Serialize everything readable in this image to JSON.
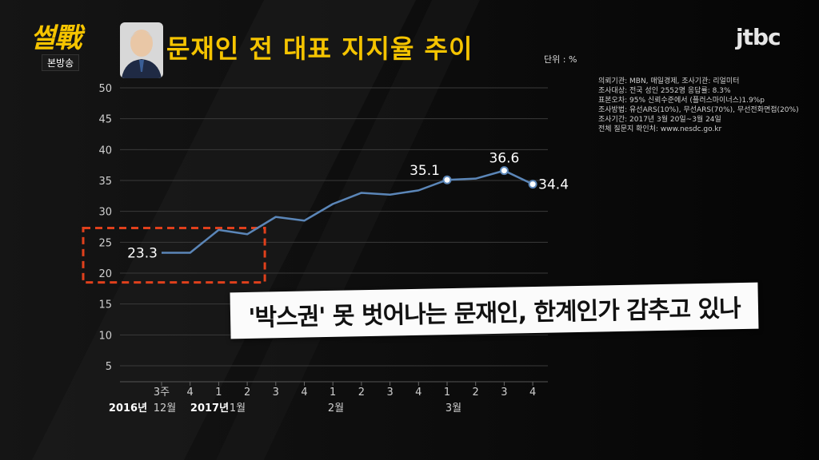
{
  "header": {
    "show_logo": "썰戰",
    "show_sub": "본방송",
    "title": "문재인 전 대표 지지율 추이",
    "unit": "단위 : %",
    "broadcaster": "jtbc"
  },
  "source_notes": [
    "의뢰기관: MBN, 매일경제, 조사기관: 리얼미터",
    "조사대상: 전국 성인 2552명 응답률: 8.3%",
    "표본오차: 95% 신뢰수준에서 (플러스마이너스)1.9%p",
    "조사방법: 유선ARS(10%), 무선ARS(70%), 무선전화면접(20%)",
    "조사기간: 2017년 3월 20일~3월 24일",
    "전체 질문지 확인처: www.nesdc.go.kr"
  ],
  "caption": "'박스권' 못 벗어나는 문재인, 한계인가 감추고 있나",
  "colors": {
    "accent": "#f5c400",
    "line": "#5b86b8",
    "highlight_box": "#e0401c",
    "point": "#ffffff"
  },
  "chart_data": {
    "type": "line",
    "title": "문재인 전 대표 지지율 추이",
    "ylim": [
      5,
      50
    ],
    "yticks": [
      "5",
      "10",
      "15",
      "20",
      "25",
      "30",
      "35",
      "40",
      "45",
      "50"
    ],
    "categories": [
      "3주",
      "4",
      "1",
      "2",
      "3",
      "4",
      "1",
      "2",
      "3",
      "4",
      "1",
      "2",
      "3",
      "4"
    ],
    "period_labels": [
      {
        "year": "2016년",
        "month": "12월"
      },
      {
        "year": "2017년",
        "month": "1월"
      },
      {
        "year": "",
        "month": "2월"
      },
      {
        "year": "",
        "month": "3월"
      }
    ],
    "values": [
      23.3,
      23.3,
      27.0,
      26.3,
      29.1,
      28.5,
      31.2,
      33.0,
      32.7,
      33.4,
      35.1,
      35.3,
      36.6,
      34.4
    ],
    "data_labels": [
      {
        "index": 0,
        "text": "23.3"
      },
      {
        "index": 10,
        "text": "35.1"
      },
      {
        "index": 12,
        "text": "36.6"
      },
      {
        "index": 13,
        "text": "34.4"
      }
    ],
    "highlighted_range": [
      0,
      3
    ],
    "grid": true
  }
}
